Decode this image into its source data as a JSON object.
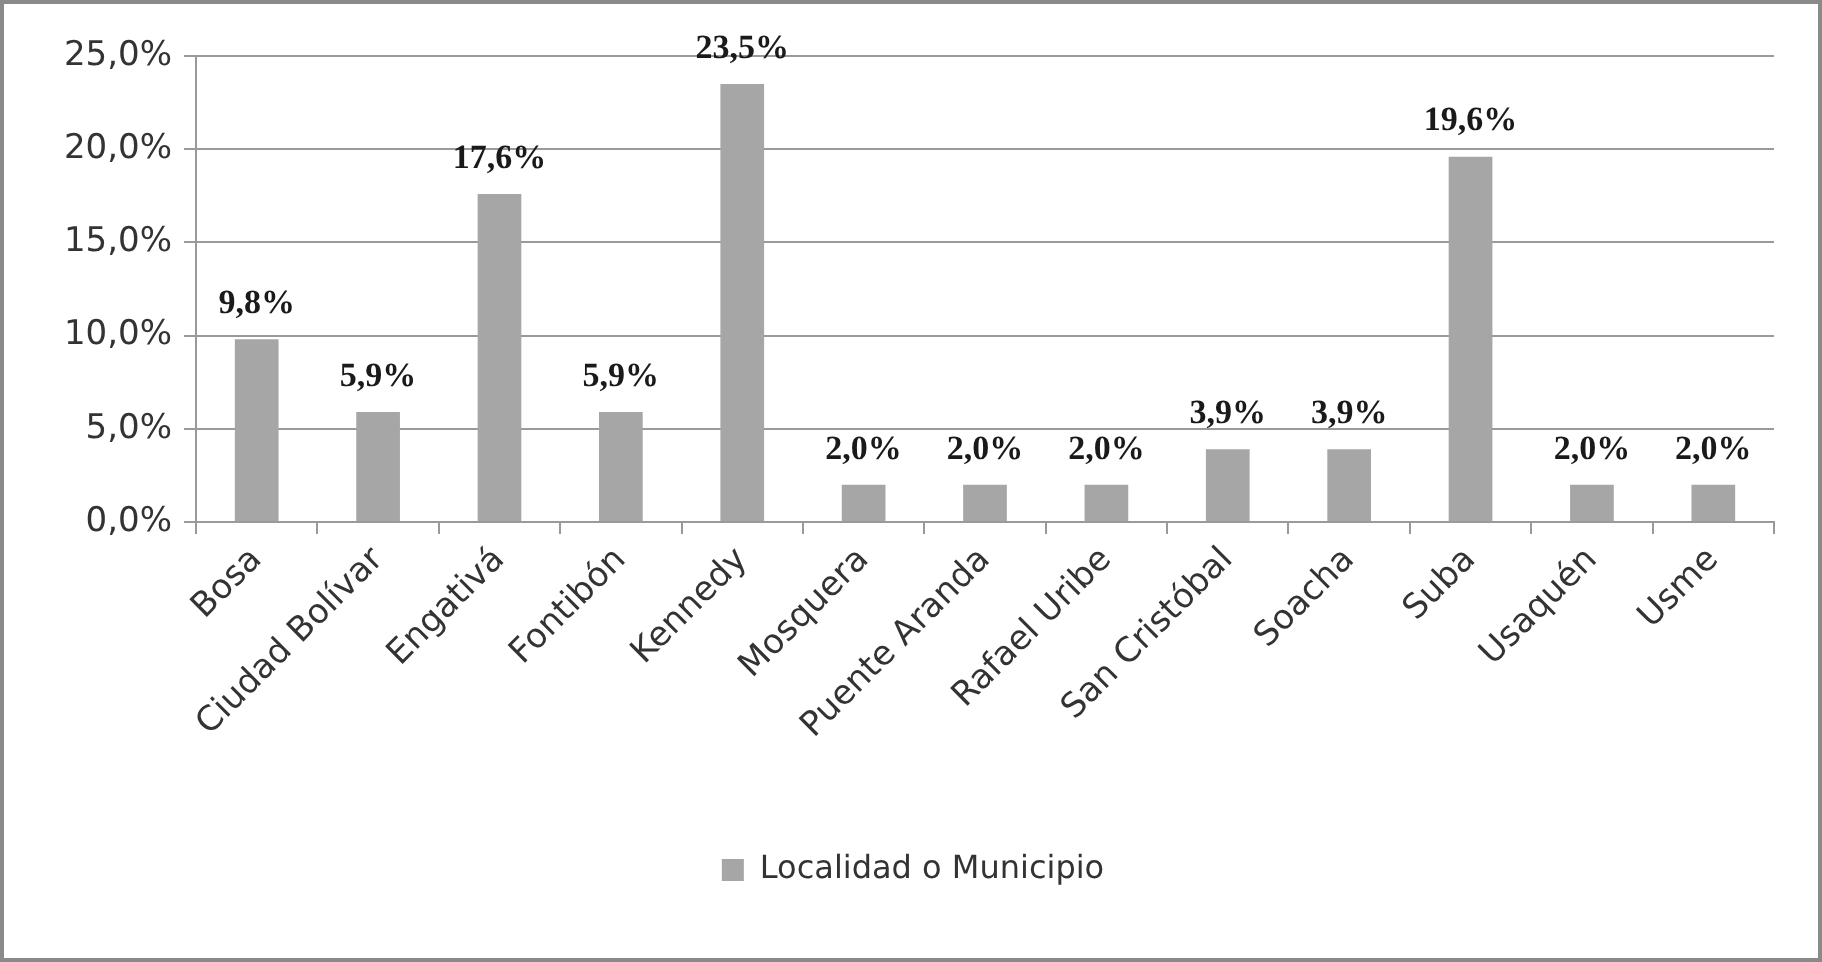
{
  "chart_data": {
    "type": "bar",
    "categories": [
      "Bosa",
      "Ciudad Bolívar",
      "Engativá",
      "Fontibón",
      "Kennedy",
      "Mosquera",
      "Puente Aranda",
      "Rafael Uribe",
      "San Cristóbal",
      "Soacha",
      "Suba",
      "Usaquén",
      "Usme"
    ],
    "series": [
      {
        "name": "Localidad o Municipio",
        "color": "#a6a6a6",
        "values": [
          9.8,
          5.9,
          17.6,
          5.9,
          23.5,
          2.0,
          2.0,
          2.0,
          3.9,
          3.9,
          19.6,
          2.0,
          2.0
        ],
        "value_labels": [
          "9,8%",
          "5,9%",
          "17,6%",
          "5,9%",
          "23,5%",
          "2,0%",
          "2,0%",
          "2,0%",
          "3,9%",
          "3,9%",
          "19,6%",
          "2,0%",
          "2,0%"
        ]
      }
    ],
    "ylim": [
      0,
      25
    ],
    "yticks": [
      {
        "value": 0,
        "label": "0,0%"
      },
      {
        "value": 5,
        "label": "5,0%"
      },
      {
        "value": 10,
        "label": "10,0%"
      },
      {
        "value": 15,
        "label": "15,0%"
      },
      {
        "value": 20,
        "label": "20,0%"
      },
      {
        "value": 25,
        "label": "25,0%"
      }
    ],
    "grid": "y",
    "legend": "bottom"
  }
}
